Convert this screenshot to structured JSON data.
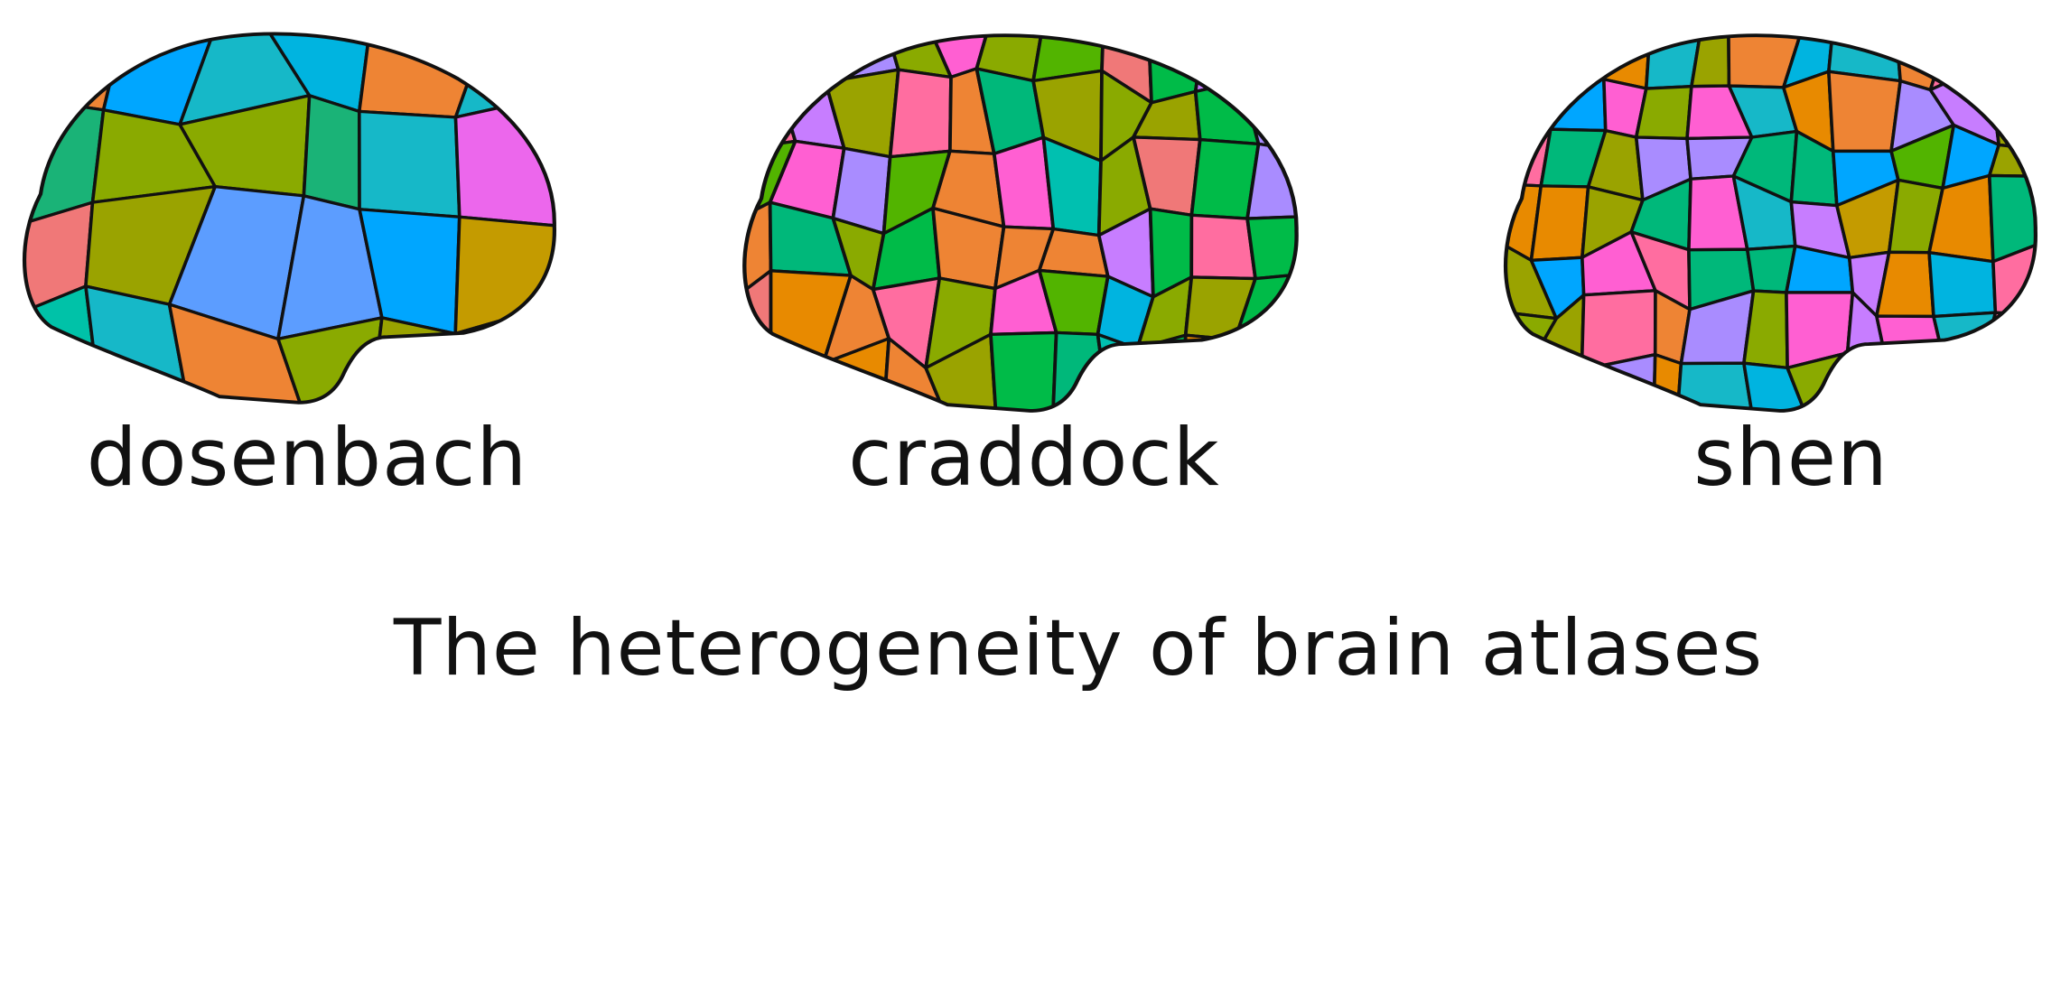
{
  "atlases": [
    {
      "id": "dosenbach",
      "label": "dosenbach",
      "palette": [
        "#c77dff",
        "#00b4e0",
        "#00a6ff",
        "#ee8434",
        "#5c9dff",
        "#c49b00",
        "#ff5fd2",
        "#f07878",
        "#ec67ec",
        "#00c2a8",
        "#16b8c8",
        "#52b400",
        "#1ab377",
        "#8aaa00",
        "#9aa300"
      ]
    },
    {
      "id": "craddock",
      "label": "craddock",
      "palette": [
        "#00bb48",
        "#00b87a",
        "#c77dff",
        "#00b4e0",
        "#ee8434",
        "#ff6da0",
        "#9aa300",
        "#ff5fd2",
        "#f07878",
        "#a98cff",
        "#00c0b0",
        "#e88a00",
        "#52b400",
        "#8aaa00"
      ]
    },
    {
      "id": "shen",
      "label": "shen",
      "palette": [
        "#52b400",
        "#9aa300",
        "#00b4e0",
        "#ff5fd2",
        "#ee8434",
        "#c77dff",
        "#00a6ff",
        "#00b87a",
        "#ff6da0",
        "#8aaa00",
        "#a98cff",
        "#16b8c8",
        "#e88a00",
        "#c49b00"
      ]
    }
  ],
  "title": "The heterogeneity of brain atlases"
}
